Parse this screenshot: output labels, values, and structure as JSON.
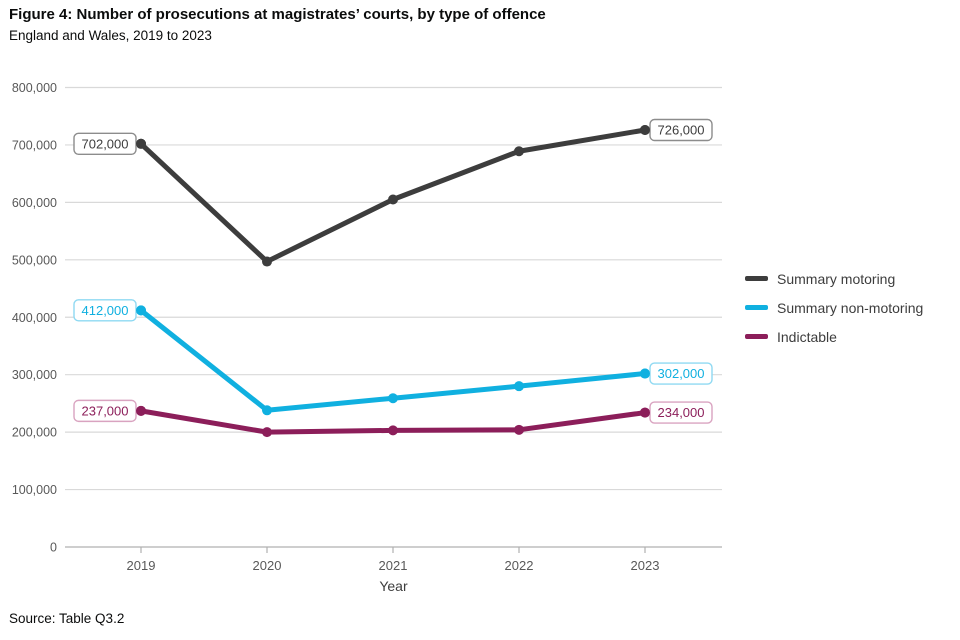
{
  "header": {
    "title": "Figure 4: Number of prosecutions at magistrates’ courts, by type of offence",
    "subtitle": "England and Wales, 2019 to 2023"
  },
  "footer": {
    "source": "Source: Table Q3.2"
  },
  "colors": {
    "background": "#ffffff",
    "grid": "#d9d9d9",
    "axis": "#b0b0b0",
    "tick_label": "#595959",
    "xlabel": "#3d3d3d"
  },
  "chart_data": {
    "type": "line",
    "title": "Figure 4: Number of prosecutions at magistrates’ courts, by type of offence",
    "subtitle": "England and Wales, 2019 to 2023",
    "x": [
      "2019",
      "2020",
      "2021",
      "2022",
      "2023"
    ],
    "xlabel": "Year",
    "ylim": [
      0,
      800000
    ],
    "grid": "horizontal",
    "legend_position": "right",
    "yticks": [
      {
        "value": 0,
        "label": "0"
      },
      {
        "value": 100000,
        "label": "100,000"
      },
      {
        "value": 200000,
        "label": "200,000"
      },
      {
        "value": 300000,
        "label": "300,000"
      },
      {
        "value": 400000,
        "label": "400,000"
      },
      {
        "value": 500000,
        "label": "500,000"
      },
      {
        "value": 600000,
        "label": "600,000"
      },
      {
        "value": 700000,
        "label": "700,000"
      },
      {
        "value": 800000,
        "label": "800,000"
      }
    ],
    "series": [
      {
        "name": "Summary motoring",
        "color": "#3d3d3d",
        "label_border": "#8c8c8c",
        "values": [
          702000,
          497000,
          605000,
          689000,
          726000
        ],
        "endpoint_labels": [
          {
            "index": 0,
            "text": "702,000",
            "side": "left"
          },
          {
            "index": 4,
            "text": "726,000",
            "side": "right"
          }
        ]
      },
      {
        "name": "Summary non-motoring",
        "color": "#10b0e0",
        "label_border": "#8fd9f2",
        "values": [
          412000,
          238000,
          259000,
          280000,
          302000
        ],
        "endpoint_labels": [
          {
            "index": 0,
            "text": "412,000",
            "side": "left"
          },
          {
            "index": 4,
            "text": "302,000",
            "side": "right"
          }
        ]
      },
      {
        "name": "Indictable",
        "color": "#8c1e5a",
        "label_border": "#d9a3c0",
        "values": [
          237000,
          200000,
          203000,
          204000,
          234000
        ],
        "endpoint_labels": [
          {
            "index": 0,
            "text": "237,000",
            "side": "left"
          },
          {
            "index": 4,
            "text": "234,000",
            "side": "right"
          }
        ]
      }
    ]
  }
}
